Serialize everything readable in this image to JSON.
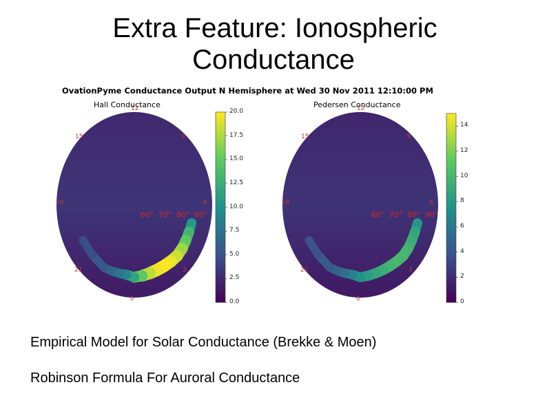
{
  "slide": {
    "title_line1": "Extra Feature: Ionospheric",
    "title_line2": "Conductance",
    "text_lines": [
      "Empirical Model for Solar Conductance (Brekke & Moen)",
      "Robinson Formula For Auroral Conductance"
    ]
  },
  "colors": {
    "cmap": [
      "#440154",
      "#3b528b",
      "#21918c",
      "#5ec962",
      "#fde725"
    ],
    "hour_label": "#c0392b",
    "lat_label": "#d62728"
  },
  "chart_data": {
    "type": "heatmap",
    "title": "OvationPyme Conductance Output N Hemisphere at Wed 30 Nov 2011 12:10:00 PM",
    "hour_labels": [
      "12",
      "9",
      "6",
      "3",
      "0",
      "21",
      "18",
      "15"
    ],
    "panels": [
      {
        "name": "Hall Conductance",
        "colorbar": {
          "min": 0,
          "max": 20,
          "ticks": [
            "0.0",
            "2.5",
            "5.0",
            "7.5",
            "10.0",
            "12.5",
            "15.0",
            "17.5",
            "20.0"
          ],
          "tick_values": [
            0,
            2.5,
            5,
            7.5,
            10,
            12.5,
            15,
            17.5,
            20
          ]
        },
        "background_value": 2.8,
        "lat_labels": [
          "60°",
          "70°",
          "80°",
          "90°"
        ],
        "auroral_oval": [
          {
            "mlt": 5.0,
            "value": 9
          },
          {
            "mlt": 4.5,
            "value": 12
          },
          {
            "mlt": 4.0,
            "value": 14
          },
          {
            "mlt": 3.5,
            "value": 16
          },
          {
            "mlt": 3.0,
            "value": 18
          },
          {
            "mlt": 2.5,
            "value": 19
          },
          {
            "mlt": 2.0,
            "value": 20
          },
          {
            "mlt": 1.5,
            "value": 20
          },
          {
            "mlt": 1.0,
            "value": 19
          },
          {
            "mlt": 0.5,
            "value": 17
          },
          {
            "mlt": 0.0,
            "value": 13
          },
          {
            "mlt": 23.5,
            "value": 10
          },
          {
            "mlt": 23.0,
            "value": 8
          },
          {
            "mlt": 22.5,
            "value": 7
          },
          {
            "mlt": 22.0,
            "value": 6
          },
          {
            "mlt": 21.0,
            "value": 5
          },
          {
            "mlt": 20.0,
            "value": 4.5
          }
        ]
      },
      {
        "name": "Pedersen Conductance",
        "colorbar": {
          "min": 0,
          "max": 15,
          "ticks": [
            "0",
            "2",
            "4",
            "6",
            "8",
            "10",
            "12",
            "14"
          ],
          "tick_values": [
            0,
            2,
            4,
            6,
            8,
            10,
            12,
            14
          ]
        },
        "background_value": 2.0,
        "lat_labels": [
          "60°",
          "70°",
          "80°",
          "90°"
        ],
        "auroral_oval": [
          {
            "mlt": 5.0,
            "value": 7
          },
          {
            "mlt": 4.5,
            "value": 8.5
          },
          {
            "mlt": 4.0,
            "value": 9
          },
          {
            "mlt": 3.5,
            "value": 9.5
          },
          {
            "mlt": 3.0,
            "value": 10
          },
          {
            "mlt": 2.5,
            "value": 10
          },
          {
            "mlt": 2.0,
            "value": 10
          },
          {
            "mlt": 1.5,
            "value": 9.5
          },
          {
            "mlt": 1.0,
            "value": 9
          },
          {
            "mlt": 0.5,
            "value": 8.5
          },
          {
            "mlt": 0.0,
            "value": 8
          },
          {
            "mlt": 23.5,
            "value": 7
          },
          {
            "mlt": 23.0,
            "value": 6
          },
          {
            "mlt": 22.5,
            "value": 5
          },
          {
            "mlt": 22.0,
            "value": 4.5
          },
          {
            "mlt": 21.0,
            "value": 4
          },
          {
            "mlt": 20.0,
            "value": 3.5
          }
        ]
      }
    ]
  }
}
